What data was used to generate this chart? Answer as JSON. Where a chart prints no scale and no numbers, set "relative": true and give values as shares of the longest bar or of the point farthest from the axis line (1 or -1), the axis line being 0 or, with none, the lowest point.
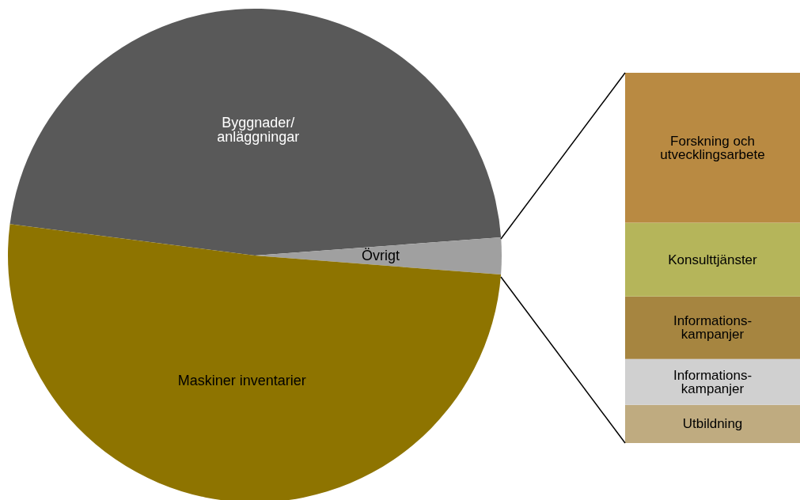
{
  "chart_data": [
    {
      "type": "pie",
      "categories": [
        "Byggnader/ anläggningar",
        "Övrigt",
        "Maskiner inventarier"
      ],
      "values": [
        46.8,
        2.4,
        50.8
      ],
      "colors": [
        "#595959",
        "#a0a0a0",
        "#8e7400"
      ],
      "legend": false
    },
    {
      "type": "bar",
      "stacked": true,
      "relative": true,
      "legend": false,
      "categories": [
        null
      ],
      "series": [
        {
          "name": "Utbildning",
          "color": "#bfab80",
          "values": [
            0.103
          ]
        },
        {
          "name": "Informations-kampanjer",
          "color": "#d0d0d0",
          "values": [
            0.124
          ]
        },
        {
          "name": "Informations-kampanjer",
          "color": "#a68540",
          "values": [
            0.169
          ]
        },
        {
          "name": "Konsulttjänster",
          "color": "#b5b55a",
          "values": [
            0.199
          ]
        },
        {
          "name": "Forskning och utvecklingsarbete",
          "color": "#b98a42",
          "values": [
            0.405
          ]
        }
      ]
    }
  ]
}
